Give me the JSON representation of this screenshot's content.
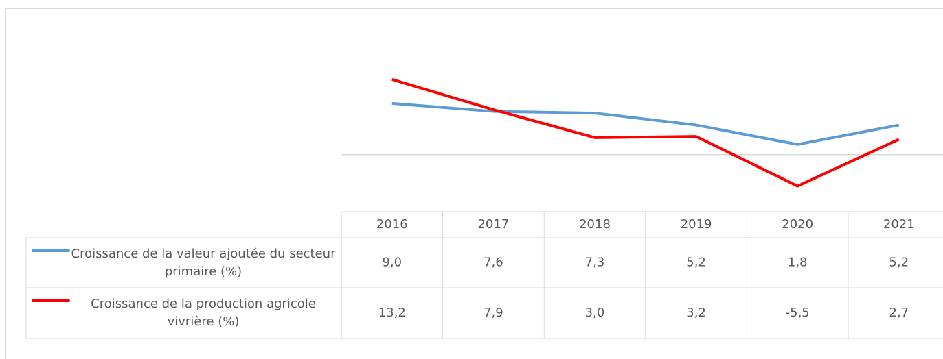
{
  "chart_data": {
    "type": "line",
    "categories": [
      "2016",
      "2017",
      "2018",
      "2019",
      "2020",
      "2021"
    ],
    "series": [
      {
        "name": "Croissance de la valeur ajoutée du secteur primaire (%)",
        "color": "#5b9bd5",
        "values": [
          9.0,
          7.6,
          7.3,
          5.2,
          1.8,
          5.2
        ],
        "value_labels": [
          "9,0",
          "7,6",
          "7,3",
          "5,2",
          "1,8",
          "5,2"
        ]
      },
      {
        "name": "Croissance de la production agricole vivrière (%)",
        "color": "#ff0000",
        "values": [
          13.2,
          7.9,
          3.0,
          3.2,
          -5.5,
          2.7
        ],
        "value_labels": [
          "13,2",
          "7,9",
          "3,0",
          "3,2",
          "-5,5",
          "2,7"
        ]
      }
    ],
    "ylim": [
      -10,
      15
    ]
  }
}
